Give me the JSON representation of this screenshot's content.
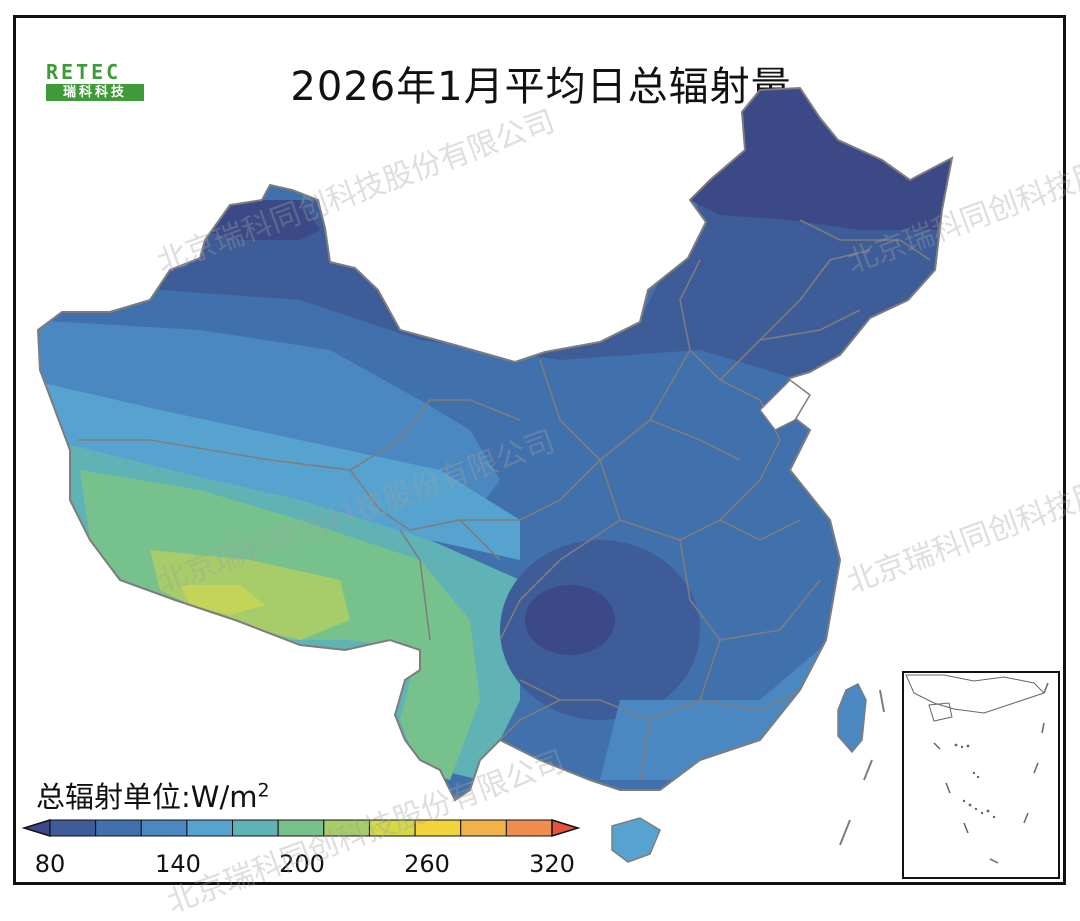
{
  "title": "2026年1月平均日总辐射量",
  "logo": {
    "top_text": "RETEC",
    "bottom_text": "瑞科科技"
  },
  "watermark": "北京瑞科同创科技股份有限公司",
  "colorbar": {
    "label": "总辐射单位:W/m",
    "unit_superscript": "2",
    "tick_labels": [
      "80",
      "140",
      "200",
      "260",
      "320"
    ],
    "min": 80,
    "max": 320,
    "step": 20,
    "colors": [
      "#3b4a86",
      "#3e5c98",
      "#4171ad",
      "#4b87c0",
      "#57a3cf",
      "#5fb3b5",
      "#77c18c",
      "#a6cd69",
      "#d5d845",
      "#f1d43c",
      "#f2b24a",
      "#ee8d4e",
      "#e5533b"
    ]
  },
  "regions_colors": {
    "lowest": "#3b4a86",
    "low": "#3e5c98",
    "mid_low": "#4171ad",
    "mid": "#4b87c0",
    "mid_high": "#57a3cf",
    "teal": "#5fb3b5",
    "green": "#77c18c",
    "lime": "#a6cd69",
    "yellow": "#d5d845"
  }
}
